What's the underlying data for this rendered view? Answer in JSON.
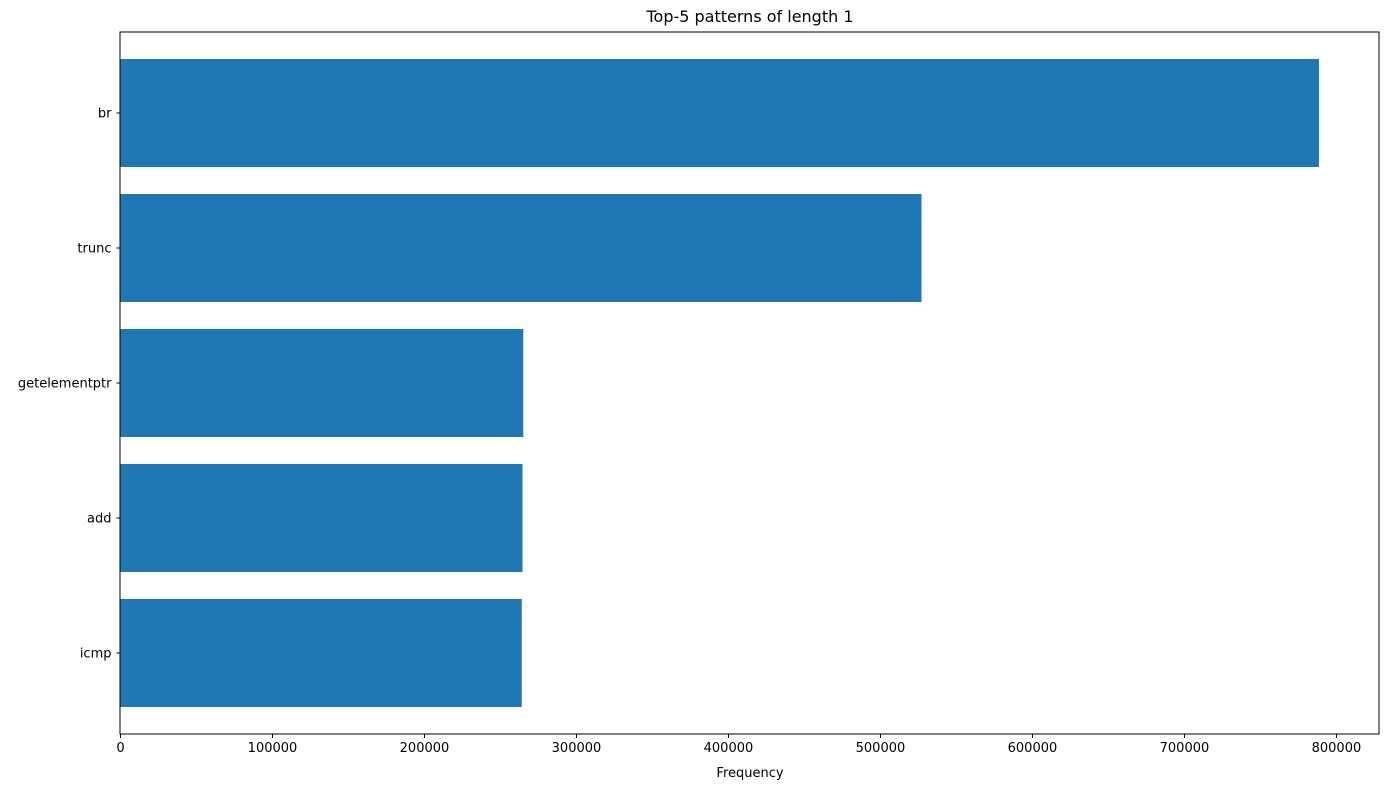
{
  "chart_data": {
    "type": "bar",
    "orientation": "horizontal",
    "title": "Top-5 patterns of length 1",
    "xlabel": "Frequency",
    "ylabel": "",
    "categories": [
      "br",
      "trunc",
      "getelementptr",
      "add",
      "icmp"
    ],
    "values": [
      788500,
      527000,
      265000,
      264500,
      264000
    ],
    "xlim": [
      0,
      828000
    ],
    "xticks": [
      0,
      100000,
      200000,
      300000,
      400000,
      500000,
      600000,
      700000,
      800000
    ],
    "xtick_labels": [
      "0",
      "100000",
      "200000",
      "300000",
      "400000",
      "500000",
      "600000",
      "700000",
      "800000"
    ],
    "bar_color": "#1f77b4",
    "grid": false,
    "legend": "none"
  }
}
